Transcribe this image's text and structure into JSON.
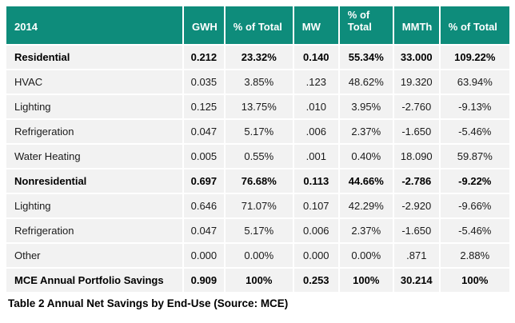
{
  "colors": {
    "header_bg": "#0E8C7B",
    "header_text": "#FFFFFF",
    "row_bg": "#F2F2F2",
    "gridline": "#FFFFFF",
    "body_text": "#1A1A1A"
  },
  "table": {
    "header": [
      "2014",
      "GWH",
      "% of Total",
      "MW",
      "% of Total",
      "MMTh",
      "% of Total"
    ],
    "rows": [
      {
        "label": "Residential",
        "bold": true,
        "values": [
          "0.212",
          "23.32%",
          "0.140",
          "55.34%",
          "33.000",
          "109.22%"
        ]
      },
      {
        "label": "HVAC",
        "bold": false,
        "values": [
          "0.035",
          "3.85%",
          ".123",
          "48.62%",
          "19.320",
          "63.94%"
        ]
      },
      {
        "label": "Lighting",
        "bold": false,
        "values": [
          "0.125",
          "13.75%",
          ".010",
          "3.95%",
          "-2.760",
          "-9.13%"
        ]
      },
      {
        "label": "Refrigeration",
        "bold": false,
        "values": [
          "0.047",
          "5.17%",
          ".006",
          "2.37%",
          "-1.650",
          "-5.46%"
        ]
      },
      {
        "label": "Water Heating",
        "bold": false,
        "values": [
          "0.005",
          "0.55%",
          ".001",
          "0.40%",
          "18.090",
          "59.87%"
        ]
      },
      {
        "label": "Nonresidential",
        "bold": true,
        "values": [
          "0.697",
          "76.68%",
          "0.113",
          "44.66%",
          "-2.786",
          "-9.22%"
        ]
      },
      {
        "label": "Lighting",
        "bold": false,
        "values": [
          "0.646",
          "71.07%",
          "0.107",
          "42.29%",
          "-2.920",
          "-9.66%"
        ]
      },
      {
        "label": "Refrigeration",
        "bold": false,
        "values": [
          "0.047",
          "5.17%",
          "0.006",
          "2.37%",
          "-1.650",
          "-5.46%"
        ]
      },
      {
        "label": "Other",
        "bold": false,
        "values": [
          "0.000",
          "0.00%",
          "0.000",
          "0.00%",
          ".871",
          "2.88%"
        ]
      },
      {
        "label": "MCE Annual Portfolio Savings",
        "bold": true,
        "values": [
          "0.909",
          "100%",
          "0.253",
          "100%",
          "30.214",
          "100%"
        ]
      }
    ]
  },
  "caption": "Table 2 Annual Net Savings by End-Use (Source: MCE)"
}
